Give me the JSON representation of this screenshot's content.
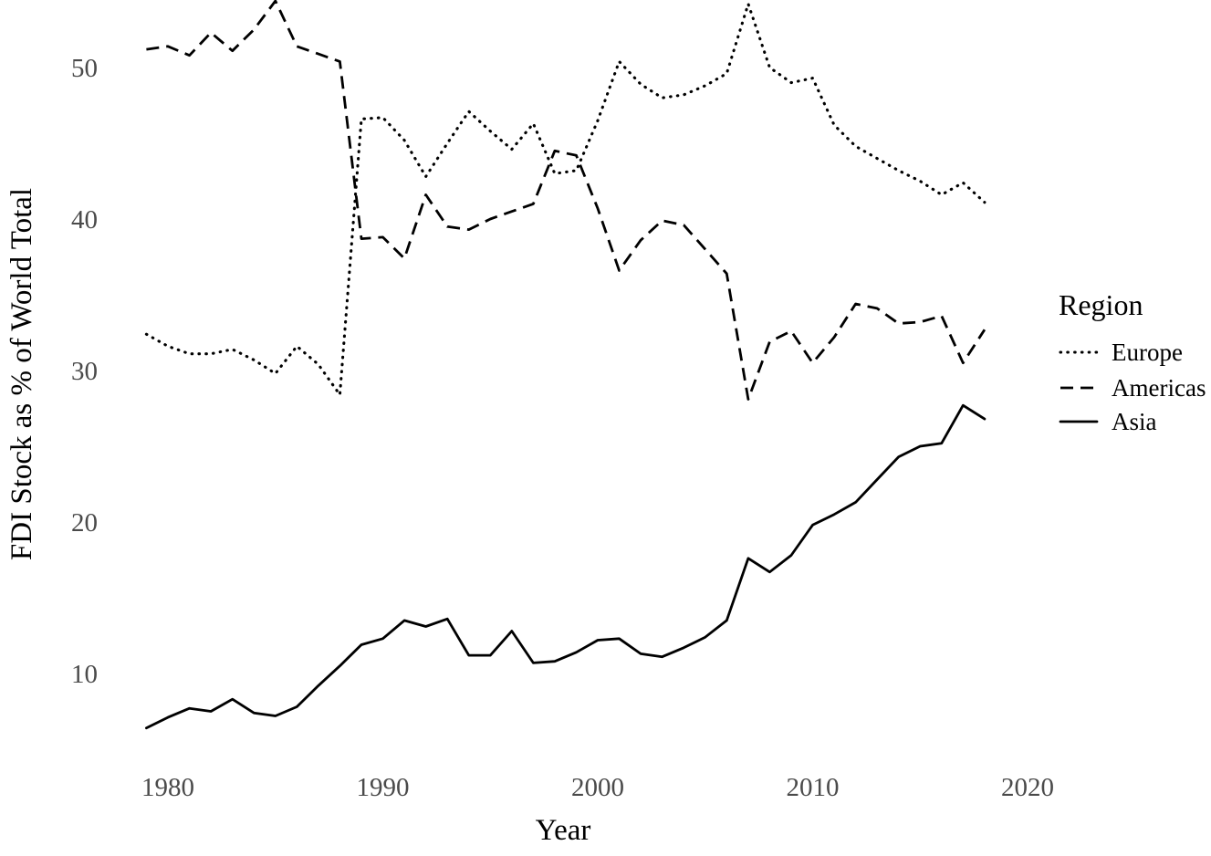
{
  "chart_data": {
    "type": "line",
    "title": "",
    "xlabel": "Year",
    "ylabel": "FDI Stock as % of World Total",
    "legend_title": "Region",
    "legend_position": "right",
    "grid": false,
    "background": "#ffffff",
    "line_color": "#000000",
    "tick_label_color": "#4a4a4a",
    "x_range": [
      1979,
      2018
    ],
    "x_ticks": [
      1980,
      1990,
      2000,
      2010,
      2020
    ],
    "y_ticks": [
      10,
      20,
      30,
      40,
      50
    ],
    "ylim": [
      5,
      55
    ],
    "series": [
      {
        "name": "Europe",
        "linetype": "dotted",
        "values": [
          32.4,
          31.6,
          31.1,
          31.1,
          31.4,
          30.7,
          29.8,
          31.6,
          30.4,
          28.4,
          46.6,
          46.7,
          45.2,
          42.8,
          45.0,
          47.1,
          45.8,
          44.6,
          46.3,
          43.0,
          43.2,
          46.5,
          50.4,
          48.9,
          48.0,
          48.2,
          48.8,
          49.6,
          54.2,
          50.0,
          49.0,
          49.3,
          46.2,
          44.8,
          44.0,
          43.2,
          42.5,
          41.6,
          42.4,
          41.1
        ]
      },
      {
        "name": "Americas",
        "linetype": "dashed",
        "values": [
          51.2,
          51.4,
          50.8,
          52.3,
          51.1,
          52.5,
          54.4,
          51.4,
          50.9,
          50.4,
          38.7,
          38.8,
          37.4,
          41.6,
          39.5,
          39.3,
          40.0,
          40.5,
          41.0,
          44.5,
          44.2,
          40.7,
          36.6,
          38.6,
          39.9,
          39.6,
          38.0,
          36.4,
          28.1,
          31.9,
          32.6,
          30.5,
          32.2,
          34.4,
          34.1,
          33.1,
          33.2,
          33.6,
          30.5,
          32.7
        ]
      },
      {
        "name": "Asia",
        "linetype": "solid",
        "values": [
          6.4,
          7.1,
          7.7,
          7.5,
          8.3,
          7.4,
          7.2,
          7.8,
          9.2,
          10.5,
          11.9,
          12.3,
          13.5,
          13.1,
          13.6,
          11.2,
          11.2,
          12.8,
          10.7,
          10.8,
          11.4,
          12.2,
          12.3,
          11.3,
          11.1,
          11.7,
          12.4,
          13.5,
          17.6,
          16.7,
          17.8,
          19.8,
          20.5,
          21.3,
          22.8,
          24.3,
          25.0,
          25.2,
          27.7,
          26.8
        ]
      }
    ]
  }
}
